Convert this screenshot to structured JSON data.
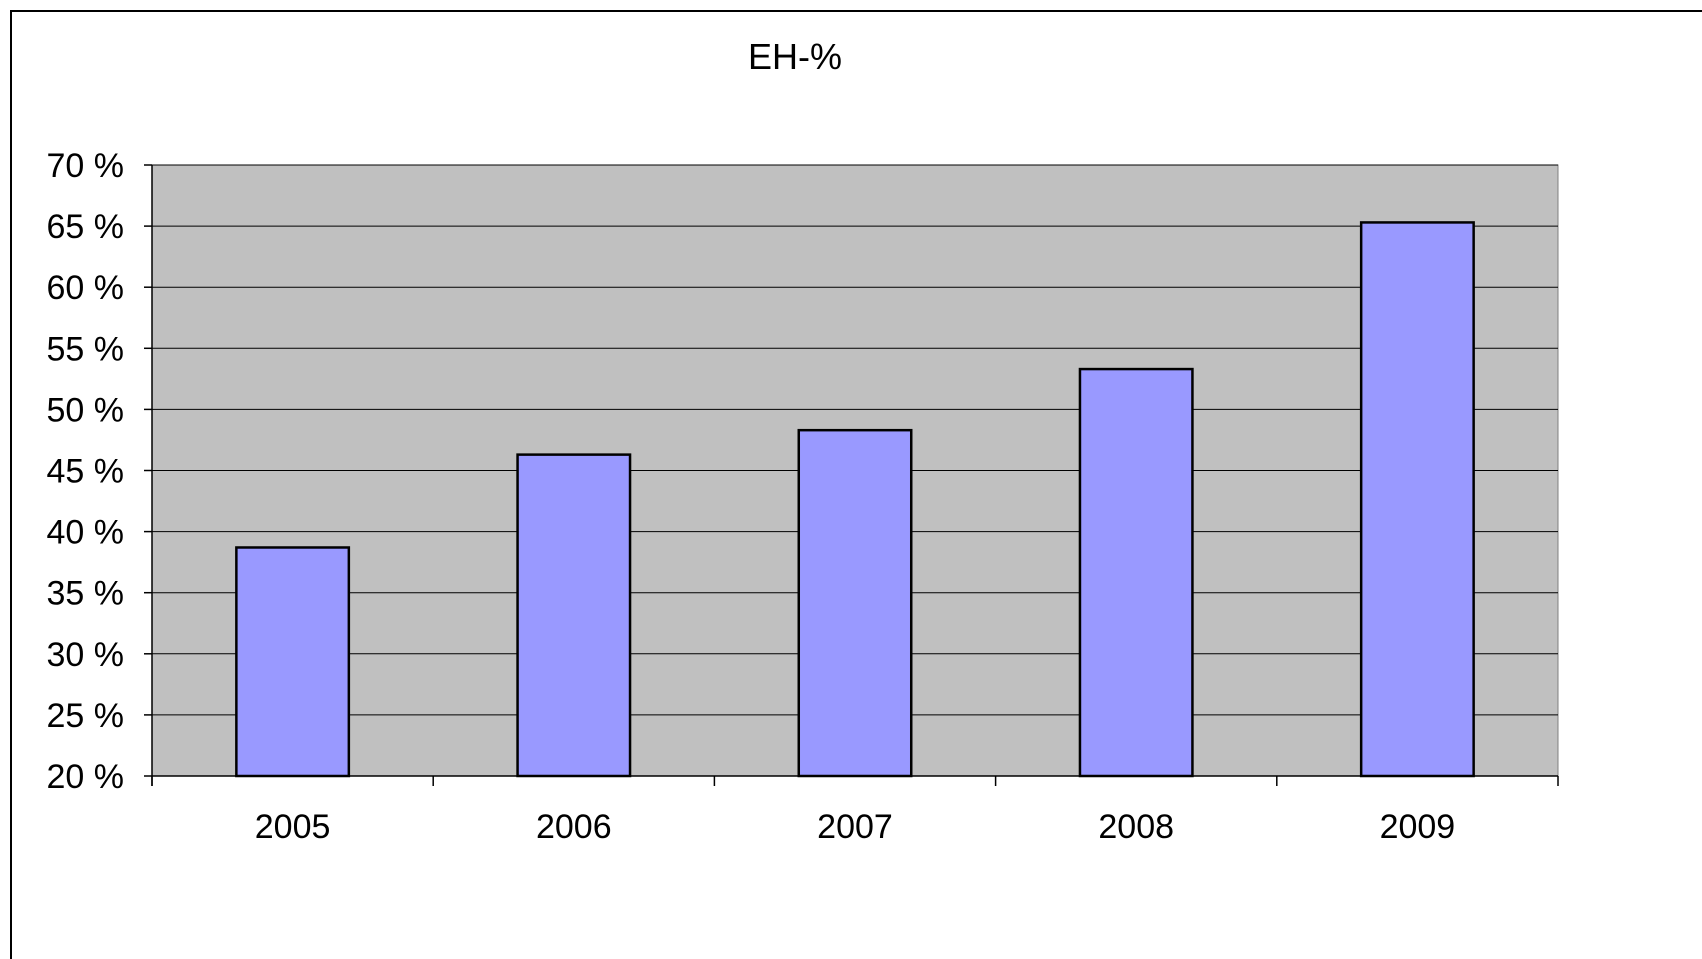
{
  "chart_data": {
    "type": "bar",
    "title": "EH-%",
    "xlabel": "",
    "ylabel": "",
    "categories": [
      "2005",
      "2006",
      "2007",
      "2008",
      "2009"
    ],
    "values": [
      38.7,
      46.3,
      48.3,
      53.3,
      65.3
    ],
    "ylim": [
      20,
      70
    ],
    "y_ticks": [
      20,
      25,
      30,
      35,
      40,
      45,
      50,
      55,
      60,
      65,
      70
    ],
    "y_tick_suffix": " %",
    "grid": true,
    "legend": "none",
    "colors": {
      "bar_fill": "#9999ff",
      "bar_stroke": "#000000",
      "plot_background": "#c0c0c0",
      "gridline": "#000000"
    }
  }
}
